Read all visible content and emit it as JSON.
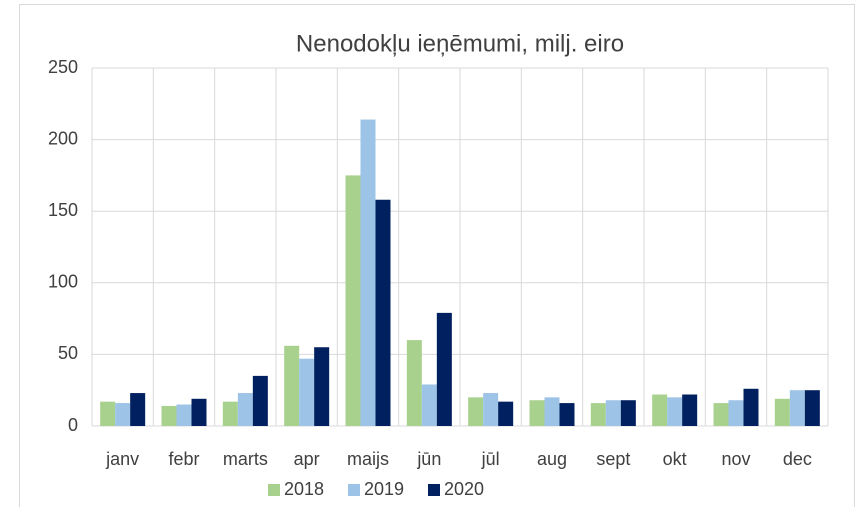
{
  "chart_data": {
    "type": "bar",
    "title": "Nenodokļu ieņēmumi, milj. eiro",
    "categories": [
      "janv",
      "febr",
      "marts",
      "apr",
      "maijs",
      "jūn",
      "jūl",
      "aug",
      "sept",
      "okt",
      "nov",
      "dec"
    ],
    "series": [
      {
        "name": "2018",
        "color": "#a9d18e",
        "values": [
          17,
          14,
          17,
          56,
          175,
          60,
          20,
          18,
          16,
          22,
          16,
          19
        ]
      },
      {
        "name": "2019",
        "color": "#9dc3e6",
        "values": [
          16,
          15,
          23,
          47,
          214,
          29,
          23,
          20,
          18,
          20,
          18,
          25
        ]
      },
      {
        "name": "2020",
        "color": "#002060",
        "values": [
          23,
          19,
          35,
          55,
          158,
          79,
          17,
          16,
          18,
          22,
          26,
          25
        ]
      }
    ],
    "ylim": [
      0,
      250
    ],
    "yticks": [
      0,
      50,
      100,
      150,
      200,
      250
    ],
    "grid": true,
    "legend": "bottom"
  }
}
